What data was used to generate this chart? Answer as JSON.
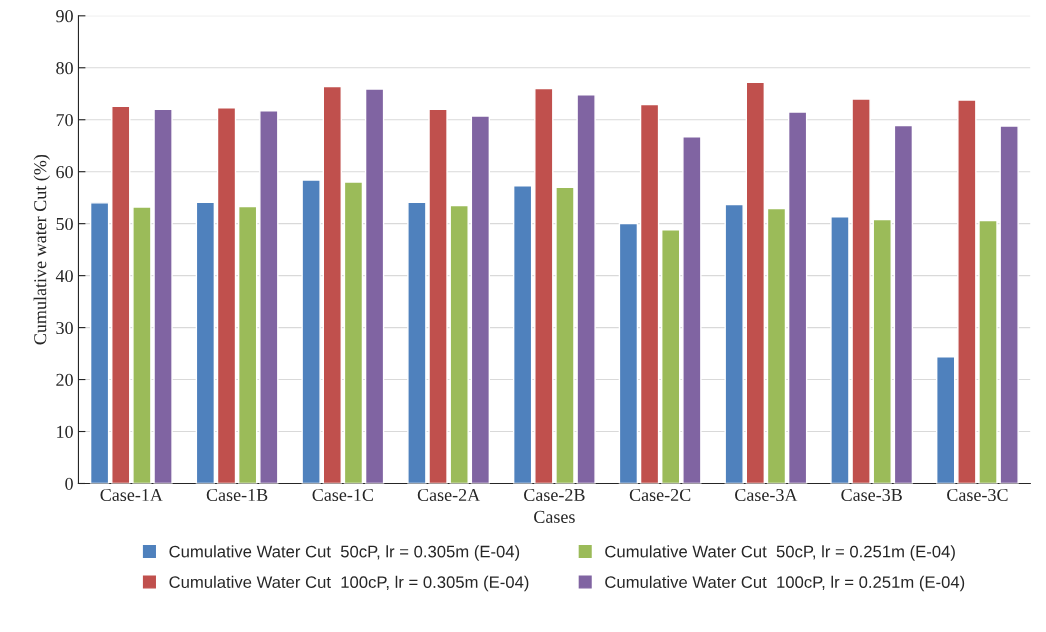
{
  "chart_data": {
    "type": "bar",
    "xlabel": "Cases",
    "ylabel": "Cumulative water Cut (%)",
    "categories": [
      "Case-1A",
      "Case-1B",
      "Case-1C",
      "Case-2A",
      "Case-2B",
      "Case-2C",
      "Case-3A",
      "Case-3B",
      "Case-3C"
    ],
    "series": [
      {
        "name": "Cumulative Water Cut  50cP, lr = 0.305m (E-04)",
        "color": "#4f81bd",
        "values": [
          54.0,
          54.1,
          58.4,
          54.1,
          57.3,
          50.0,
          53.7,
          51.3,
          24.4
        ]
      },
      {
        "name": "Cumulative Water Cut  100cP, lr = 0.305m (E-04)",
        "color": "#c0504d",
        "values": [
          72.6,
          72.3,
          76.4,
          72.0,
          76.0,
          72.9,
          77.2,
          74.0,
          73.8
        ]
      },
      {
        "name": "Cumulative Water Cut  50cP, lr = 0.251m (E-04)",
        "color": "#9bbb59",
        "values": [
          53.2,
          53.3,
          58.0,
          53.5,
          57.0,
          48.8,
          52.9,
          50.8,
          50.6
        ]
      },
      {
        "name": "Cumulative Water Cut  100cP, lr = 0.251m (E-04)",
        "color": "#8064a2",
        "values": [
          72.0,
          71.7,
          75.9,
          70.7,
          74.8,
          66.7,
          71.5,
          68.9,
          68.8
        ]
      }
    ],
    "ylim": [
      0,
      90
    ],
    "yticks": [
      0,
      10,
      20,
      30,
      40,
      50,
      60,
      70,
      80,
      90
    ],
    "grid": "y",
    "legend": "bottom"
  }
}
